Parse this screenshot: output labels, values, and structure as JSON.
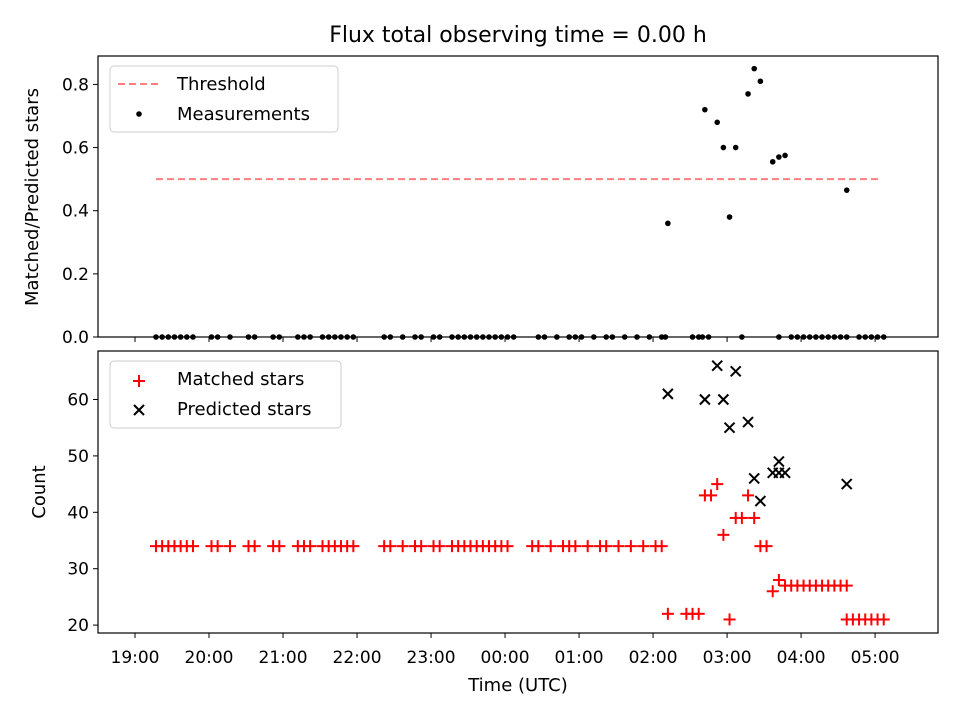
{
  "chart_data": [
    {
      "type": "scatter",
      "title": "Flux total observing time = 0.00 h",
      "xlabel": "",
      "ylabel": "Matched/Predicted stars",
      "ylim": [
        0,
        0.89
      ],
      "yticks": [
        "0.0",
        "0.2",
        "0.4",
        "0.6",
        "0.8"
      ],
      "xlim_hours": [
        18.5,
        29.85
      ],
      "legend_position": "upper-left",
      "threshold": {
        "name": "Threshold",
        "value": 0.5,
        "x_start": "19:17",
        "x_end": "05:03",
        "color": "#ff7f7f"
      },
      "series": [
        {
          "name": "Measurements",
          "color": "#000000",
          "points": [
            [
              "19:17",
              0
            ],
            [
              "19:22",
              0
            ],
            [
              "19:27",
              0
            ],
            [
              "19:32",
              0
            ],
            [
              "19:37",
              0
            ],
            [
              "19:42",
              0
            ],
            [
              "19:47",
              0
            ],
            [
              "20:02",
              0
            ],
            [
              "20:07",
              0
            ],
            [
              "20:17",
              0
            ],
            [
              "20:32",
              0
            ],
            [
              "20:37",
              0
            ],
            [
              "20:52",
              0
            ],
            [
              "20:57",
              0
            ],
            [
              "21:12",
              0
            ],
            [
              "21:17",
              0
            ],
            [
              "21:22",
              0
            ],
            [
              "21:32",
              0
            ],
            [
              "21:37",
              0
            ],
            [
              "21:42",
              0
            ],
            [
              "21:47",
              0
            ],
            [
              "21:52",
              0
            ],
            [
              "21:57",
              0
            ],
            [
              "22:22",
              0
            ],
            [
              "22:27",
              0
            ],
            [
              "22:37",
              0
            ],
            [
              "22:47",
              0
            ],
            [
              "22:52",
              0
            ],
            [
              "23:02",
              0
            ],
            [
              "23:07",
              0
            ],
            [
              "23:17",
              0
            ],
            [
              "23:22",
              0
            ],
            [
              "23:27",
              0
            ],
            [
              "23:32",
              0
            ],
            [
              "23:37",
              0
            ],
            [
              "23:42",
              0
            ],
            [
              "23:47",
              0
            ],
            [
              "23:52",
              0
            ],
            [
              "23:57",
              0
            ],
            [
              "00:02",
              0
            ],
            [
              "00:07",
              0
            ],
            [
              "00:27",
              0
            ],
            [
              "00:32",
              0
            ],
            [
              "00:42",
              0
            ],
            [
              "00:52",
              0
            ],
            [
              "00:57",
              0
            ],
            [
              "01:02",
              0
            ],
            [
              "01:12",
              0
            ],
            [
              "01:22",
              0
            ],
            [
              "01:27",
              0
            ],
            [
              "01:37",
              0
            ],
            [
              "01:47",
              0
            ],
            [
              "01:57",
              0
            ],
            [
              "02:07",
              0
            ],
            [
              "02:10",
              0
            ],
            [
              "02:12",
              0.36
            ],
            [
              "02:32",
              0
            ],
            [
              "02:37",
              0
            ],
            [
              "02:40",
              0
            ],
            [
              "02:45",
              0
            ],
            [
              "02:42",
              0.72
            ],
            [
              "02:52",
              0.68
            ],
            [
              "02:57",
              0.6
            ],
            [
              "03:02",
              0.38
            ],
            [
              "03:07",
              0.6
            ],
            [
              "03:12",
              0
            ],
            [
              "03:17",
              0.77
            ],
            [
              "03:22",
              0.85
            ],
            [
              "03:27",
              0.81
            ],
            [
              "03:42",
              0
            ],
            [
              "03:37",
              0.555
            ],
            [
              "03:42",
              0.57
            ],
            [
              "03:47",
              0.575
            ],
            [
              "03:52",
              0
            ],
            [
              "03:57",
              0
            ],
            [
              "04:02",
              0
            ],
            [
              "04:07",
              0
            ],
            [
              "04:12",
              0
            ],
            [
              "04:17",
              0
            ],
            [
              "04:22",
              0
            ],
            [
              "04:27",
              0
            ],
            [
              "04:32",
              0
            ],
            [
              "04:37",
              0
            ],
            [
              "04:37",
              0.465
            ],
            [
              "04:47",
              0
            ],
            [
              "04:52",
              0
            ],
            [
              "04:57",
              0
            ],
            [
              "05:02",
              0
            ],
            [
              "05:07",
              0
            ]
          ]
        }
      ]
    },
    {
      "type": "scatter",
      "title": "",
      "xlabel": "Time (UTC)",
      "ylabel": "Count",
      "ylim": [
        18.6,
        68.6
      ],
      "yticks": [
        "20",
        "30",
        "40",
        "50",
        "60"
      ],
      "xlim_hours": [
        18.5,
        29.85
      ],
      "xticks": [
        "19:00",
        "20:00",
        "21:00",
        "22:00",
        "23:00",
        "00:00",
        "01:00",
        "02:00",
        "03:00",
        "04:00",
        "05:00"
      ],
      "legend_position": "upper-left",
      "series": [
        {
          "name": "Matched stars",
          "marker": "plus",
          "color": "#ff0000",
          "points": [
            [
              "19:17",
              34
            ],
            [
              "19:22",
              34
            ],
            [
              "19:27",
              34
            ],
            [
              "19:32",
              34
            ],
            [
              "19:37",
              34
            ],
            [
              "19:42",
              34
            ],
            [
              "19:47",
              34
            ],
            [
              "20:02",
              34
            ],
            [
              "20:07",
              34
            ],
            [
              "20:17",
              34
            ],
            [
              "20:32",
              34
            ],
            [
              "20:37",
              34
            ],
            [
              "20:52",
              34
            ],
            [
              "20:57",
              34
            ],
            [
              "21:12",
              34
            ],
            [
              "21:17",
              34
            ],
            [
              "21:22",
              34
            ],
            [
              "21:32",
              34
            ],
            [
              "21:37",
              34
            ],
            [
              "21:42",
              34
            ],
            [
              "21:47",
              34
            ],
            [
              "21:52",
              34
            ],
            [
              "21:57",
              34
            ],
            [
              "22:22",
              34
            ],
            [
              "22:27",
              34
            ],
            [
              "22:37",
              34
            ],
            [
              "22:47",
              34
            ],
            [
              "22:52",
              34
            ],
            [
              "23:02",
              34
            ],
            [
              "23:07",
              34
            ],
            [
              "23:17",
              34
            ],
            [
              "23:22",
              34
            ],
            [
              "23:27",
              34
            ],
            [
              "23:32",
              34
            ],
            [
              "23:37",
              34
            ],
            [
              "23:42",
              34
            ],
            [
              "23:47",
              34
            ],
            [
              "23:52",
              34
            ],
            [
              "23:57",
              34
            ],
            [
              "00:02",
              34
            ],
            [
              "00:22",
              34
            ],
            [
              "00:27",
              34
            ],
            [
              "00:37",
              34
            ],
            [
              "00:47",
              34
            ],
            [
              "00:52",
              34
            ],
            [
              "00:57",
              34
            ],
            [
              "01:07",
              34
            ],
            [
              "01:17",
              34
            ],
            [
              "01:22",
              34
            ],
            [
              "01:32",
              34
            ],
            [
              "01:42",
              34
            ],
            [
              "01:52",
              34
            ],
            [
              "02:02",
              34
            ],
            [
              "02:07",
              34
            ],
            [
              "02:12",
              22
            ],
            [
              "02:27",
              22
            ],
            [
              "02:32",
              22
            ],
            [
              "02:37",
              22
            ],
            [
              "02:42",
              43
            ],
            [
              "02:47",
              43
            ],
            [
              "02:52",
              45
            ],
            [
              "02:57",
              36
            ],
            [
              "03:02",
              21
            ],
            [
              "03:07",
              39
            ],
            [
              "03:12",
              39
            ],
            [
              "03:17",
              43
            ],
            [
              "03:22",
              39
            ],
            [
              "03:27",
              34
            ],
            [
              "03:32",
              34
            ],
            [
              "03:37",
              26
            ],
            [
              "03:42",
              28
            ],
            [
              "03:47",
              27
            ],
            [
              "03:52",
              27
            ],
            [
              "03:57",
              27
            ],
            [
              "04:02",
              27
            ],
            [
              "04:07",
              27
            ],
            [
              "04:12",
              27
            ],
            [
              "04:17",
              27
            ],
            [
              "04:22",
              27
            ],
            [
              "04:27",
              27
            ],
            [
              "04:32",
              27
            ],
            [
              "04:37",
              27
            ],
            [
              "04:37",
              21
            ],
            [
              "04:42",
              21
            ],
            [
              "04:47",
              21
            ],
            [
              "04:52",
              21
            ],
            [
              "04:57",
              21
            ],
            [
              "05:02",
              21
            ],
            [
              "05:07",
              21
            ]
          ]
        },
        {
          "name": "Predicted stars",
          "marker": "x",
          "color": "#000000",
          "points": [
            [
              "02:12",
              61
            ],
            [
              "02:42",
              60
            ],
            [
              "02:52",
              66
            ],
            [
              "02:57",
              60
            ],
            [
              "03:02",
              55
            ],
            [
              "03:07",
              65
            ],
            [
              "03:17",
              56
            ],
            [
              "03:22",
              46
            ],
            [
              "03:27",
              42
            ],
            [
              "03:37",
              47
            ],
            [
              "03:42",
              49
            ],
            [
              "03:42",
              47
            ],
            [
              "03:47",
              47
            ],
            [
              "04:37",
              45
            ]
          ]
        }
      ]
    }
  ]
}
